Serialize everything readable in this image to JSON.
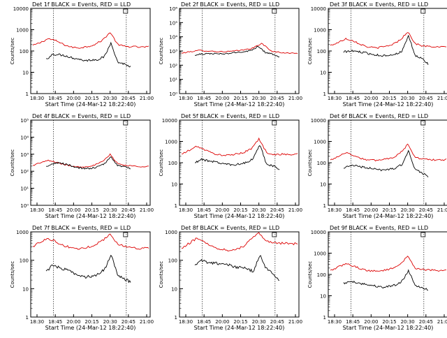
{
  "page": {
    "background": "#ffffff"
  },
  "common": {
    "xlabel": "Start Time (24-Mar-12 18:22:40)",
    "ylabel": "Counts/sec",
    "xticks": [
      "18:30",
      "18:45",
      "20:00",
      "20:15",
      "20:30",
      "20:45",
      "21:00"
    ],
    "colors": {
      "events": "#000000",
      "lld": "#dd0000",
      "axes": "#000000"
    }
  },
  "chart_data": [
    {
      "type": "line",
      "title": "Det 1f BLACK = Events, RED = LLD",
      "y_scale": "log",
      "ylim": [
        1,
        10000
      ],
      "yticks": [
        "1",
        "10",
        "100",
        "1000",
        "10000"
      ],
      "series": [
        {
          "values": [
            40,
            70,
            67,
            60,
            48,
            42,
            35,
            38,
            40,
            55,
            250,
            30,
            25,
            18
          ]
        },
        {
          "values": [
            180,
            250,
            380,
            300,
            200,
            150,
            140,
            160,
            200,
            320,
            750,
            200,
            160,
            160,
            150,
            160
          ]
        }
      ]
    },
    {
      "type": "line",
      "title": "Det 2f BLACK = Events, RED = LLD",
      "y_scale": "log",
      "ylim": [
        1,
        1000000
      ],
      "yticks": [
        "10⁰",
        "10¹",
        "10²",
        "10³",
        "10⁴",
        "10⁵",
        "10⁶"
      ],
      "series": [
        {
          "values": [
            500,
            600,
            650,
            650,
            600,
            700,
            800,
            900,
            1100,
            2200,
            800,
            600,
            350
          ]
        },
        {
          "values": [
            700,
            900,
            1100,
            1000,
            900,
            900,
            1000,
            1200,
            1600,
            3500,
            1000,
            800,
            700,
            700
          ]
        }
      ]
    },
    {
      "type": "line",
      "title": "Det 3f BLACK = Events, RED = LLD",
      "y_scale": "log",
      "ylim": [
        1,
        10000
      ],
      "yticks": [
        "1",
        "10",
        "100",
        "1000",
        "10000"
      ],
      "series": [
        {
          "values": [
            90,
            100,
            95,
            85,
            75,
            65,
            60,
            65,
            70,
            100,
            500,
            60,
            45,
            25
          ]
        },
        {
          "values": [
            180,
            250,
            380,
            300,
            200,
            150,
            140,
            160,
            200,
            320,
            800,
            220,
            170,
            160,
            150,
            160
          ]
        }
      ]
    },
    {
      "type": "line",
      "title": "Det 4f BLACK = Events, RED = LLD",
      "y_scale": "log",
      "ylim": [
        1,
        100000
      ],
      "yticks": [
        "10⁰",
        "10¹",
        "10²",
        "10³",
        "10⁴",
        "10⁵"
      ],
      "series": [
        {
          "values": [
            180,
            260,
            320,
            260,
            200,
            160,
            140,
            150,
            180,
            280,
            700,
            220,
            180,
            150
          ]
        },
        {
          "values": [
            220,
            320,
            420,
            340,
            250,
            200,
            180,
            190,
            230,
            360,
            950,
            280,
            220,
            200,
            190,
            200
          ]
        }
      ]
    },
    {
      "type": "line",
      "title": "Det 5f BLACK = Events, RED = LLD",
      "y_scale": "log",
      "ylim": [
        1,
        10000
      ],
      "yticks": [
        "1",
        "10",
        "100",
        "1000",
        "10000"
      ],
      "series": [
        {
          "values": [
            100,
            140,
            125,
            110,
            95,
            85,
            80,
            90,
            100,
            160,
            700,
            90,
            70,
            50
          ]
        },
        {
          "values": [
            250,
            380,
            600,
            400,
            280,
            230,
            220,
            250,
            300,
            450,
            1300,
            300,
            240,
            250,
            240,
            260
          ]
        }
      ]
    },
    {
      "type": "line",
      "title": "Det 6f BLACK = Events, RED = LLD",
      "y_scale": "log",
      "ylim": [
        1,
        10000
      ],
      "yticks": [
        "1",
        "10",
        "100",
        "1000",
        "10000"
      ],
      "series": [
        {
          "values": [
            60,
            75,
            70,
            62,
            55,
            48,
            45,
            50,
            55,
            85,
            350,
            45,
            35,
            22
          ]
        },
        {
          "values": [
            130,
            200,
            300,
            220,
            160,
            130,
            130,
            150,
            170,
            280,
            700,
            180,
            150,
            140,
            130,
            140
          ]
        }
      ]
    },
    {
      "type": "line",
      "title": "Det 7f BLACK = Events, RED = LLD",
      "y_scale": "log",
      "ylim": [
        1,
        1000
      ],
      "yticks": [
        "1",
        "10",
        "100",
        "1000"
      ],
      "series": [
        {
          "values": [
            40,
            65,
            55,
            48,
            38,
            30,
            25,
            28,
            32,
            48,
            150,
            30,
            22,
            17
          ]
        },
        {
          "values": [
            300,
            450,
            600,
            450,
            320,
            280,
            250,
            280,
            350,
            500,
            800,
            380,
            300,
            280,
            260,
            280
          ]
        }
      ]
    },
    {
      "type": "line",
      "title": "Det 8f BLACK = Events, RED = LLD",
      "y_scale": "log",
      "ylim": [
        1,
        1000
      ],
      "yticks": [
        "1",
        "10",
        "100",
        "1000"
      ],
      "series": [
        {
          "values": [
            70,
            95,
            85,
            80,
            75,
            70,
            60,
            55,
            50,
            40,
            150,
            50,
            35,
            20
          ]
        },
        {
          "values": [
            250,
            400,
            600,
            450,
            300,
            250,
            230,
            250,
            300,
            600,
            900,
            500,
            400,
            400,
            380,
            380
          ]
        }
      ]
    },
    {
      "type": "line",
      "title": "Det 9f BLACK = Events, RED = LLD",
      "y_scale": "log",
      "ylim": [
        1,
        10000
      ],
      "yticks": [
        "1",
        "10",
        "100",
        "1000",
        "10000"
      ],
      "series": [
        {
          "values": [
            38,
            48,
            42,
            36,
            32,
            28,
            25,
            28,
            32,
            50,
            150,
            32,
            25,
            18
          ]
        },
        {
          "values": [
            150,
            220,
            320,
            250,
            180,
            150,
            140,
            160,
            190,
            300,
            700,
            200,
            170,
            160,
            150,
            160
          ]
        }
      ]
    }
  ]
}
